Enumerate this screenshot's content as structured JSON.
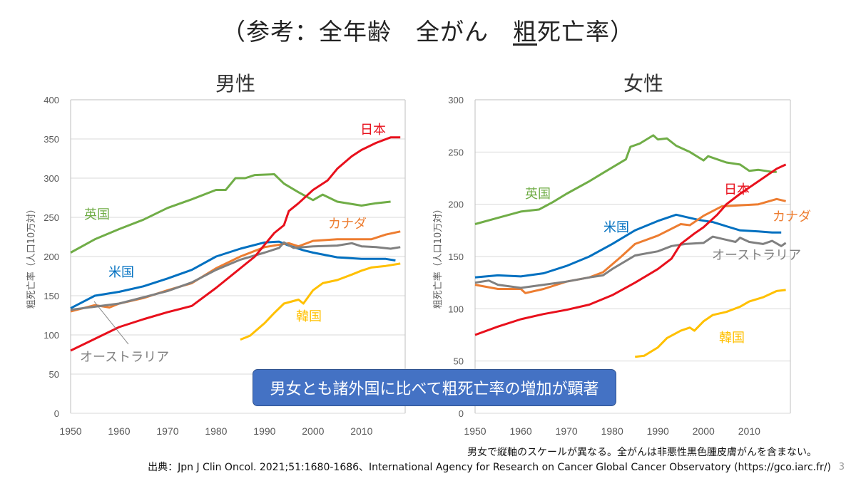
{
  "title": {
    "prefix": "（参考：全年齢　全がん　",
    "underlined": "粗",
    "suffix": "死亡率）"
  },
  "callout": "男女とも諸外国に比べて粗死亡率の増加が顕著",
  "notes": {
    "scale": "男女で縦軸のスケールが異なる。全がんは非悪性黒色腫皮膚がんを含まない。",
    "source": "出典：Jpn J Clin Oncol. 2021;51:1680-1686、International Agency for Research on Cancer Global Cancer Observatory (https://gco.iarc.fr/)",
    "page": "3"
  },
  "colors": {
    "日本": "#e8101c",
    "英国": "#70ad47",
    "米国": "#0070c0",
    "カナダ": "#ed7d31",
    "オーストラリア": "#808080",
    "韓国": "#ffc000"
  },
  "chart_data": [
    {
      "type": "line",
      "title": "男性",
      "ylabel": "粗死亡率（人口10万対）",
      "xlim": [
        1950,
        2019
      ],
      "ylim": [
        0,
        400
      ],
      "xticks": [
        1950,
        1960,
        1970,
        1980,
        1990,
        2000,
        2010
      ],
      "yticks": [
        0,
        50,
        100,
        150,
        200,
        250,
        300,
        350,
        400
      ],
      "grid": true,
      "series": [
        {
          "name": "英国",
          "x": [
            1950,
            1955,
            1960,
            1965,
            1970,
            1975,
            1980,
            1982,
            1984,
            1986,
            1988,
            1992,
            1994,
            1997,
            2000,
            2002,
            2005,
            2010,
            2013,
            2016
          ],
          "y": [
            205,
            222,
            235,
            247,
            262,
            273,
            285,
            285,
            300,
            300,
            304,
            305,
            293,
            282,
            272,
            279,
            270,
            265,
            268,
            270
          ]
        },
        {
          "name": "米国",
          "x": [
            1950,
            1955,
            1960,
            1965,
            1970,
            1975,
            1980,
            1985,
            1990,
            1993,
            1995,
            1998,
            2000,
            2005,
            2010,
            2015,
            2017
          ],
          "y": [
            134,
            150,
            155,
            162,
            172,
            183,
            200,
            210,
            218,
            219,
            214,
            208,
            205,
            199,
            197,
            197,
            195
          ]
        },
        {
          "name": "カナダ",
          "x": [
            1950,
            1955,
            1958,
            1960,
            1965,
            1970,
            1975,
            1980,
            1985,
            1990,
            1995,
            1997,
            2000,
            2005,
            2010,
            2012,
            2015,
            2018
          ],
          "y": [
            130,
            138,
            135,
            140,
            147,
            157,
            166,
            185,
            200,
            212,
            217,
            213,
            220,
            222,
            222,
            222,
            228,
            232
          ]
        },
        {
          "name": "オーストラリア",
          "x": [
            1950,
            1955,
            1960,
            1965,
            1970,
            1975,
            1980,
            1985,
            1990,
            1993,
            1994,
            1996,
            2000,
            2005,
            2008,
            2010,
            2013,
            2016,
            2018
          ],
          "y": [
            132,
            136,
            140,
            148,
            156,
            167,
            183,
            196,
            205,
            211,
            218,
            211,
            213,
            214,
            217,
            213,
            212,
            210,
            212
          ]
        },
        {
          "name": "韓国",
          "x": [
            1985,
            1987,
            1990,
            1992,
            1994,
            1997,
            1998,
            2000,
            2002,
            2005,
            2008,
            2010,
            2012,
            2015,
            2018
          ],
          "y": [
            94,
            99,
            115,
            128,
            140,
            145,
            140,
            157,
            166,
            170,
            177,
            182,
            186,
            188,
            191
          ]
        },
        {
          "name": "日本",
          "x": [
            1950,
            1955,
            1960,
            1965,
            1970,
            1975,
            1980,
            1985,
            1988,
            1990,
            1992,
            1994,
            1995,
            1997,
            2000,
            2003,
            2005,
            2008,
            2010,
            2013,
            2016,
            2018
          ],
          "y": [
            80,
            95,
            110,
            120,
            129,
            137,
            160,
            185,
            200,
            215,
            230,
            240,
            258,
            268,
            285,
            297,
            312,
            328,
            336,
            345,
            352,
            352
          ]
        }
      ]
    },
    {
      "type": "line",
      "title": "女性",
      "ylabel": "粗死亡率（人口10万対）",
      "xlim": [
        1950,
        2019
      ],
      "ylim": [
        0,
        300
      ],
      "xticks": [
        1950,
        1960,
        1970,
        1980,
        1990,
        2000,
        2010
      ],
      "yticks": [
        0,
        50,
        100,
        150,
        200,
        250,
        300
      ],
      "grid": true,
      "series": [
        {
          "name": "英国",
          "x": [
            1950,
            1955,
            1960,
            1964,
            1967,
            1970,
            1975,
            1978,
            1983,
            1984,
            1986,
            1989,
            1990,
            1992,
            1994,
            1997,
            2000,
            2001,
            2005,
            2008,
            2010,
            2012,
            2015,
            2016
          ],
          "y": [
            181,
            187,
            193,
            195,
            202,
            210,
            222,
            230,
            243,
            255,
            258,
            266,
            262,
            263,
            256,
            250,
            242,
            246,
            240,
            238,
            232,
            233,
            231,
            231
          ]
        },
        {
          "name": "米国",
          "x": [
            1950,
            1955,
            1960,
            1965,
            1970,
            1975,
            1980,
            1985,
            1990,
            1994,
            1996,
            1999,
            2002,
            2005,
            2008,
            2012,
            2015,
            2017
          ],
          "y": [
            130,
            132,
            131,
            134,
            141,
            150,
            162,
            175,
            184,
            190,
            188,
            185,
            183,
            179,
            175,
            174,
            173,
            173
          ]
        },
        {
          "name": "カナダ",
          "x": [
            1950,
            1955,
            1960,
            1961,
            1965,
            1970,
            1975,
            1978,
            1982,
            1985,
            1990,
            1995,
            1997,
            2000,
            2004,
            2008,
            2012,
            2016,
            2018
          ],
          "y": [
            123,
            119,
            119,
            115,
            119,
            126,
            130,
            135,
            150,
            162,
            170,
            181,
            180,
            189,
            198,
            199,
            200,
            205,
            203
          ]
        },
        {
          "name": "オーストラリア",
          "x": [
            1950,
            1953,
            1955,
            1960,
            1965,
            1970,
            1975,
            1978,
            1980,
            1985,
            1990,
            1993,
            1996,
            2000,
            2002,
            2007,
            2008,
            2010,
            2013,
            2015,
            2017,
            2018
          ],
          "y": [
            125,
            127,
            123,
            120,
            123,
            126,
            130,
            132,
            138,
            151,
            155,
            160,
            162,
            163,
            169,
            164,
            168,
            164,
            162,
            165,
            160,
            163
          ]
        },
        {
          "name": "韓国",
          "x": [
            1985,
            1987,
            1990,
            1992,
            1995,
            1997,
            1998,
            2000,
            2002,
            2005,
            2008,
            2010,
            2013,
            2016,
            2018
          ],
          "y": [
            54,
            55,
            63,
            72,
            79,
            82,
            79,
            88,
            94,
            97,
            102,
            107,
            111,
            117,
            118
          ]
        },
        {
          "name": "日本",
          "x": [
            1950,
            1955,
            1960,
            1965,
            1970,
            1975,
            1980,
            1985,
            1990,
            1993,
            1995,
            1998,
            2000,
            2003,
            2005,
            2008,
            2010,
            2013,
            2016,
            2018
          ],
          "y": [
            75,
            83,
            90,
            95,
            99,
            104,
            113,
            125,
            138,
            148,
            162,
            172,
            178,
            190,
            200,
            210,
            216,
            225,
            234,
            238
          ]
        }
      ]
    }
  ]
}
